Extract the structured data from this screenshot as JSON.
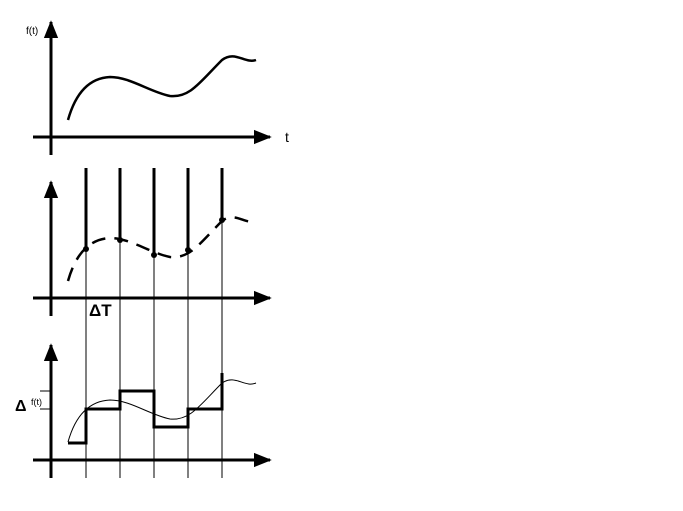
{
  "panel_top": {
    "y_label": "f(t)",
    "x_label": "t"
  },
  "panel_sampled": {
    "interval_label": "ΔT"
  },
  "panel_quantized": {
    "delta_symbol": "Δ",
    "delta_label": "f(t)"
  },
  "colors": {
    "ink": "#000000",
    "background": "#ffffff"
  }
}
